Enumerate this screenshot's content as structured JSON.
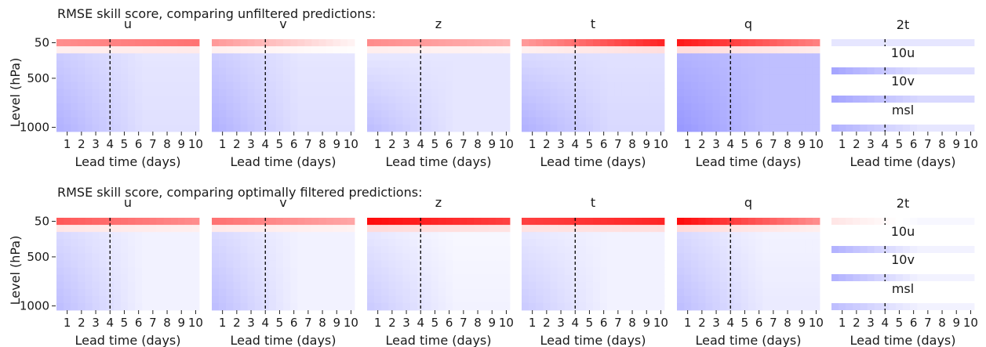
{
  "figure": {
    "rows": [
      {
        "title": "RMSE skill score, comparing unfiltered predictions:",
        "ylabel": "Level (hPa)",
        "xlabel": "Lead time (days)"
      },
      {
        "title": "RMSE skill score, comparing optimally filtered predictions:",
        "ylabel": "Level (hPa)",
        "xlabel": "Lead time (days)"
      }
    ],
    "level_ticks": [
      "50",
      "500",
      "1000"
    ],
    "lead_ticks": [
      "1",
      "2",
      "3",
      "4",
      "5",
      "6",
      "7",
      "8",
      "9",
      "10"
    ]
  },
  "chart_data": {
    "type": "heatmap",
    "colormap": "bwr",
    "colors": {
      "negative": "#0000ff",
      "zero": "#ffffff",
      "positive": "#ff0000"
    },
    "vertical_marker_day": 3.75,
    "lead_time_days": [
      0.5,
      1,
      1.5,
      2,
      2.5,
      3,
      3.5,
      4,
      4.5,
      5,
      5.5,
      6,
      6.5,
      7,
      7.5,
      8,
      8.5,
      9,
      9.5,
      10
    ],
    "atmospheric_variables": [
      "u",
      "v",
      "z",
      "t",
      "q"
    ],
    "surface_variables": [
      "2t",
      "10u",
      "10v",
      "msl"
    ],
    "rows": [
      {
        "atmos": [
          {
            "name": "u",
            "top_start": 0.45,
            "top_end": 0.55,
            "upper_start": -0.2,
            "upper_end": -0.1,
            "lower_start": -0.3,
            "lower_end": -0.12
          },
          {
            "name": "v",
            "top_start": 0.4,
            "top_end": 0.05,
            "upper_start": -0.2,
            "upper_end": -0.1,
            "lower_start": -0.3,
            "lower_end": -0.12
          },
          {
            "name": "z",
            "top_start": 0.45,
            "top_end": 0.3,
            "upper_start": -0.1,
            "upper_end": -0.1,
            "lower_start": -0.25,
            "lower_end": -0.1
          },
          {
            "name": "t",
            "top_start": 0.4,
            "top_end": 0.85,
            "upper_start": -0.15,
            "upper_end": -0.12,
            "lower_start": -0.3,
            "lower_end": -0.15
          },
          {
            "name": "q",
            "top_start": 0.9,
            "top_end": 0.5,
            "upper_start": -0.3,
            "upper_end": -0.25,
            "lower_start": -0.4,
            "lower_end": -0.25
          }
        ],
        "surface": [
          {
            "name": "2t",
            "start": -0.1,
            "end": -0.1
          },
          {
            "name": "10u",
            "start": -0.35,
            "end": -0.12
          },
          {
            "name": "10v",
            "start": -0.35,
            "end": -0.15
          },
          {
            "name": "msl",
            "start": -0.3,
            "end": -0.1
          }
        ]
      },
      {
        "atmos": [
          {
            "name": "u",
            "top_start": 0.65,
            "top_end": 0.45,
            "upper_start": -0.15,
            "upper_end": -0.05,
            "lower_start": -0.25,
            "lower_end": -0.05
          },
          {
            "name": "v",
            "top_start": 0.55,
            "top_end": 0.35,
            "upper_start": -0.15,
            "upper_end": -0.05,
            "lower_start": -0.25,
            "lower_end": -0.05
          },
          {
            "name": "z",
            "top_start": 0.95,
            "top_end": 0.75,
            "upper_start": -0.1,
            "upper_end": -0.03,
            "lower_start": -0.2,
            "lower_end": -0.05
          },
          {
            "name": "t",
            "top_start": 0.75,
            "top_end": 0.85,
            "upper_start": -0.1,
            "upper_end": -0.05,
            "lower_start": -0.2,
            "lower_end": -0.05
          },
          {
            "name": "q",
            "top_start": 0.95,
            "top_end": 0.45,
            "upper_start": -0.15,
            "upper_end": -0.05,
            "lower_start": -0.25,
            "lower_end": -0.08
          }
        ],
        "surface": [
          {
            "name": "2t",
            "start": 0.1,
            "end": -0.03
          },
          {
            "name": "10u",
            "start": -0.3,
            "end": -0.05
          },
          {
            "name": "10v",
            "start": -0.3,
            "end": -0.05
          },
          {
            "name": "msl",
            "start": -0.25,
            "end": -0.05
          }
        ]
      }
    ]
  }
}
